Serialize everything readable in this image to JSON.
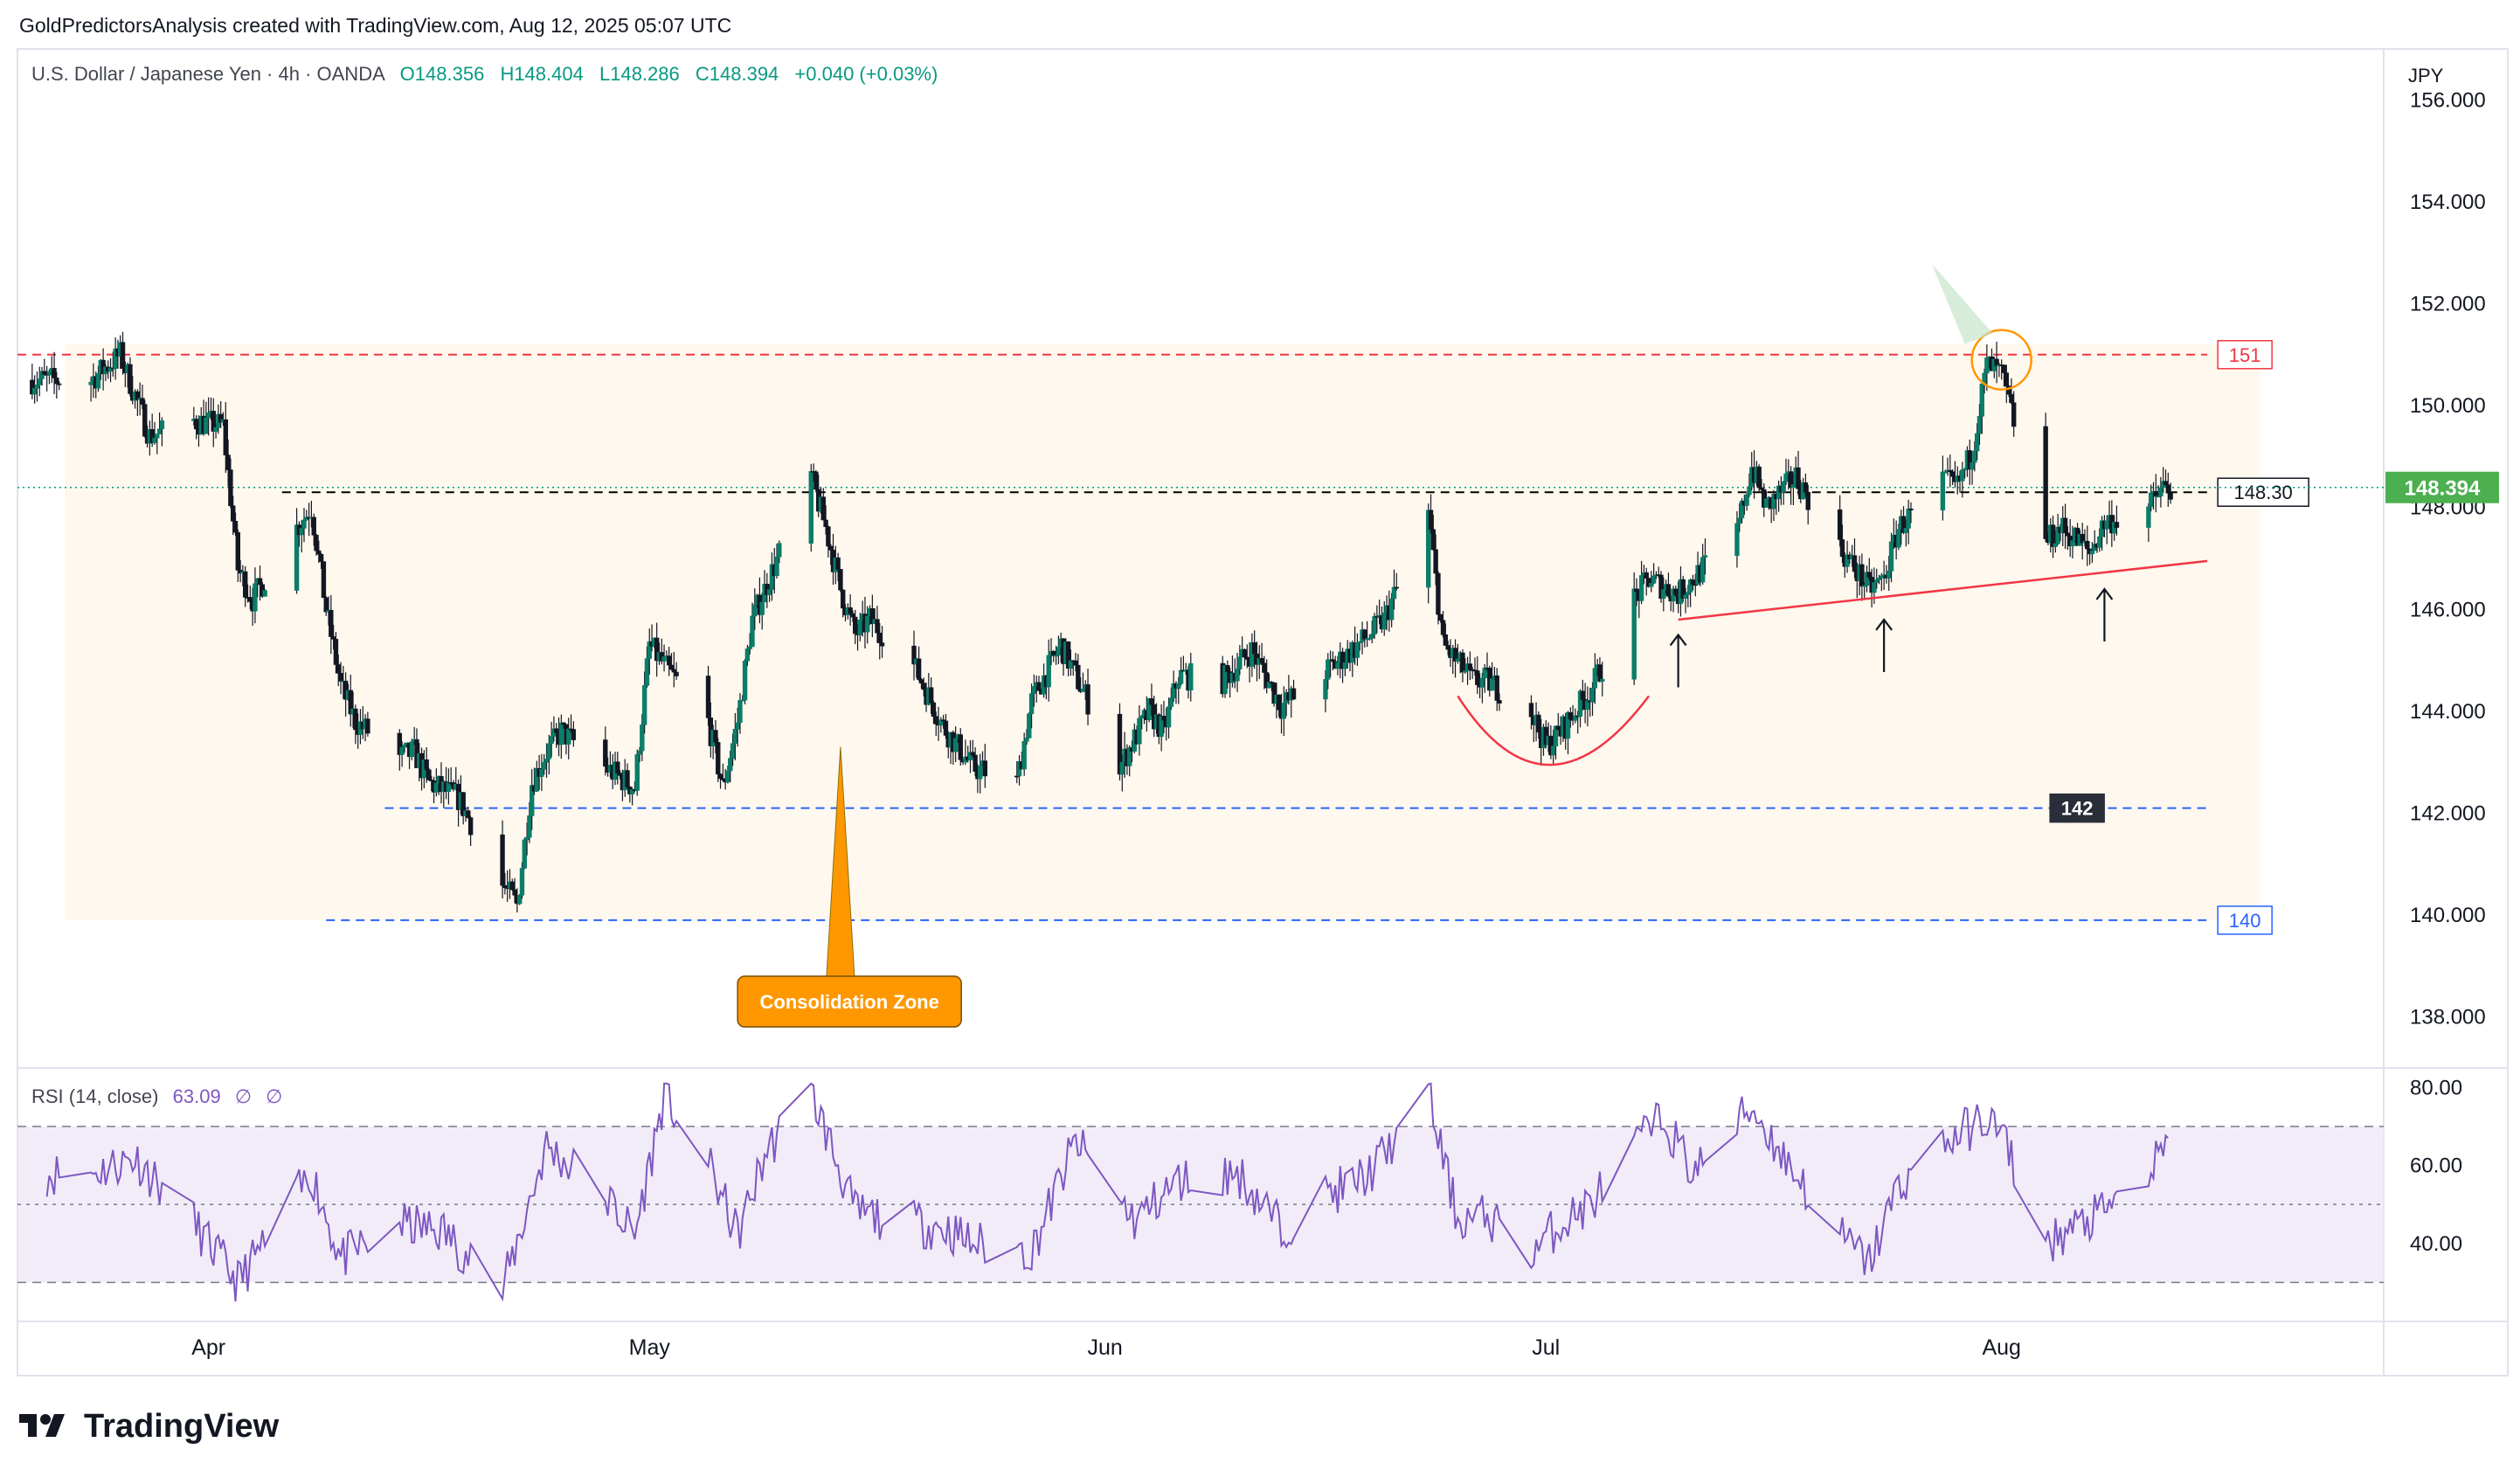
{
  "header": {
    "attribution": "GoldPredictorsAnalysis created with TradingView.com, Aug 12, 2025 05:07 UTC",
    "symbol": "U.S. Dollar / Japanese Yen · 4h · OANDA",
    "open": "O148.356",
    "high": "H148.404",
    "low": "L148.286",
    "close": "C148.394",
    "change": "+0.040 (+0.03%)"
  },
  "price_axis": {
    "currency": "JPY",
    "ticks": [
      "156.000",
      "154.000",
      "152.000",
      "150.000",
      "148.000",
      "146.000",
      "144.000",
      "142.000",
      "140.000",
      "138.000"
    ],
    "last_price": "148.394"
  },
  "rsi_axis": {
    "ticks": [
      "80.00",
      "60.00",
      "40.00"
    ]
  },
  "indicator": {
    "label": "RSI (14, close)",
    "value": "63.09",
    "extra1": "∅",
    "extra2": "∅"
  },
  "time_axis": {
    "labels": [
      "Apr",
      "May",
      "Jun",
      "Jul",
      "Aug"
    ]
  },
  "annotations": {
    "level_151": "151",
    "level_148_30": "148.30",
    "level_142": "142",
    "level_140": "140",
    "consolidation": "Consolidation Zone"
  },
  "footer": {
    "logo": "TradingView"
  },
  "colors": {
    "up": "#089981",
    "down": "#f23645",
    "candle_fill_up": "#ffffff",
    "candle_fill_down": "#000000",
    "resistance": "#f23645",
    "support": "#2962ff",
    "rsi_line": "#7e57c2",
    "rsi_band": "#ede7f6",
    "zone_fill": "#fff8ee",
    "callout": "#ff9800",
    "last_price_tag": "#4caf50"
  },
  "chart_data": {
    "type": "candlestick",
    "symbol": "USD/JPY",
    "interval": "4h",
    "y_range": [
      137,
      157
    ],
    "rsi_range": [
      20,
      85
    ],
    "price_path": [
      [
        "2025-03-24",
        150.5
      ],
      [
        "2025-03-26",
        151.0
      ],
      [
        "2025-03-28",
        149.4
      ],
      [
        "2025-03-31",
        149.7
      ],
      [
        "2025-04-02",
        149.6
      ],
      [
        "2025-04-03",
        146.8
      ],
      [
        "2025-04-04",
        146.2
      ],
      [
        "2025-04-07",
        147.6
      ],
      [
        "2025-04-08",
        148.0
      ],
      [
        "2025-04-09",
        146.0
      ],
      [
        "2025-04-10",
        144.5
      ],
      [
        "2025-04-11",
        143.8
      ],
      [
        "2025-04-14",
        143.1
      ],
      [
        "2025-04-15",
        143.2
      ],
      [
        "2025-04-16",
        142.6
      ],
      [
        "2025-04-18",
        142.3
      ],
      [
        "2025-04-21",
        140.6
      ],
      [
        "2025-04-22",
        140.2
      ],
      [
        "2025-04-23",
        142.6
      ],
      [
        "2025-04-24",
        143.2
      ],
      [
        "2025-04-25",
        143.6
      ],
      [
        "2025-04-28",
        142.9
      ],
      [
        "2025-04-30",
        142.5
      ],
      [
        "2025-05-01",
        145.3
      ],
      [
        "2025-05-02",
        144.9
      ],
      [
        "2025-05-05",
        143.8
      ],
      [
        "2025-05-06",
        142.5
      ],
      [
        "2025-05-07",
        143.8
      ],
      [
        "2025-05-08",
        145.8
      ],
      [
        "2025-05-12",
        148.6
      ],
      [
        "2025-05-13",
        147.6
      ],
      [
        "2025-05-14",
        146.4
      ],
      [
        "2025-05-15",
        145.5
      ],
      [
        "2025-05-16",
        145.8
      ],
      [
        "2025-05-19",
        144.9
      ],
      [
        "2025-05-21",
        143.7
      ],
      [
        "2025-05-23",
        142.9
      ],
      [
        "2025-05-26",
        142.6
      ],
      [
        "2025-05-27",
        144.2
      ],
      [
        "2025-05-29",
        145.3
      ],
      [
        "2025-06-02",
        142.9
      ],
      [
        "2025-06-04",
        144.0
      ],
      [
        "2025-06-05",
        143.6
      ],
      [
        "2025-06-06",
        144.7
      ],
      [
        "2025-06-09",
        144.6
      ],
      [
        "2025-06-11",
        145.2
      ],
      [
        "2025-06-13",
        144.1
      ],
      [
        "2025-06-17",
        145.0
      ],
      [
        "2025-06-19",
        145.5
      ],
      [
        "2025-06-20",
        145.8
      ],
      [
        "2025-06-23",
        147.9
      ],
      [
        "2025-06-24",
        145.3
      ],
      [
        "2025-06-26",
        144.6
      ],
      [
        "2025-06-27",
        144.6
      ],
      [
        "2025-06-30",
        144.0
      ],
      [
        "2025-07-01",
        143.3
      ],
      [
        "2025-07-02",
        143.6
      ],
      [
        "2025-07-03",
        144.0
      ],
      [
        "2025-07-04",
        144.4
      ],
      [
        "2025-07-07",
        146.2
      ],
      [
        "2025-07-08",
        146.6
      ],
      [
        "2025-07-10",
        146.3
      ],
      [
        "2025-07-14",
        147.5
      ],
      [
        "2025-07-15",
        148.8
      ],
      [
        "2025-07-16",
        148.0
      ],
      [
        "2025-07-18",
        148.6
      ],
      [
        "2025-07-21",
        147.2
      ],
      [
        "2025-07-23",
        146.4
      ],
      [
        "2025-07-24",
        146.6
      ],
      [
        "2025-07-25",
        147.6
      ],
      [
        "2025-07-28",
        148.5
      ],
      [
        "2025-07-29",
        148.4
      ],
      [
        "2025-07-30",
        149.1
      ],
      [
        "2025-07-31",
        150.8
      ],
      [
        "2025-08-01",
        150.6
      ],
      [
        "2025-08-04",
        147.3
      ],
      [
        "2025-08-05",
        147.6
      ],
      [
        "2025-08-06",
        147.4
      ],
      [
        "2025-08-07",
        147.1
      ],
      [
        "2025-08-08",
        147.7
      ],
      [
        "2025-08-11",
        148.0
      ],
      [
        "2025-08-12",
        148.39
      ]
    ],
    "rsi_path": [
      [
        "2025-03-24",
        58
      ],
      [
        "2025-03-27",
        62
      ],
      [
        "2025-03-31",
        45
      ],
      [
        "2025-04-03",
        30
      ],
      [
        "2025-04-07",
        52
      ],
      [
        "2025-04-08",
        58
      ],
      [
        "2025-04-10",
        36
      ],
      [
        "2025-04-14",
        45
      ],
      [
        "2025-04-17",
        43
      ],
      [
        "2025-04-21",
        28
      ],
      [
        "2025-04-24",
        65
      ],
      [
        "2025-04-28",
        52
      ],
      [
        "2025-04-30",
        42
      ],
      [
        "2025-05-02",
        78
      ],
      [
        "2025-05-05",
        60
      ],
      [
        "2025-05-07",
        42
      ],
      [
        "2025-05-09",
        64
      ],
      [
        "2025-05-12",
        79
      ],
      [
        "2025-05-15",
        48
      ],
      [
        "2025-05-19",
        45
      ],
      [
        "2025-05-21",
        44
      ],
      [
        "2025-05-23",
        40
      ],
      [
        "2025-05-27",
        38
      ],
      [
        "2025-05-30",
        66
      ],
      [
        "2025-06-03",
        46
      ],
      [
        "2025-06-06",
        56
      ],
      [
        "2025-06-10",
        58
      ],
      [
        "2025-06-13",
        44
      ],
      [
        "2025-06-16",
        52
      ],
      [
        "2025-06-19",
        58
      ],
      [
        "2025-06-23",
        78
      ],
      [
        "2025-06-25",
        46
      ],
      [
        "2025-06-27",
        47
      ],
      [
        "2025-06-30",
        38
      ],
      [
        "2025-07-02",
        45
      ],
      [
        "2025-07-04",
        50
      ],
      [
        "2025-07-07",
        65
      ],
      [
        "2025-07-09",
        72
      ],
      [
        "2025-07-11",
        58
      ],
      [
        "2025-07-15",
        75
      ],
      [
        "2025-07-17",
        63
      ],
      [
        "2025-07-21",
        42
      ],
      [
        "2025-07-23",
        35
      ],
      [
        "2025-07-25",
        55
      ],
      [
        "2025-07-29",
        68
      ],
      [
        "2025-07-31",
        72
      ],
      [
        "2025-08-01",
        68
      ],
      [
        "2025-08-04",
        40
      ],
      [
        "2025-08-06",
        44
      ],
      [
        "2025-08-08",
        48
      ],
      [
        "2025-08-11",
        58
      ],
      [
        "2025-08-12",
        63.09
      ]
    ],
    "levels": [
      {
        "label": "151",
        "value": 151.0,
        "style": "dashed",
        "color": "#f23645"
      },
      {
        "label": "148.30",
        "value": 148.3,
        "style": "dashed",
        "color": "#000000"
      },
      {
        "label": "142",
        "value": 142.1,
        "style": "dashed",
        "color": "#2962ff"
      },
      {
        "label": "140",
        "value": 139.9,
        "style": "dashed",
        "color": "#2962ff"
      }
    ],
    "trendline": {
      "from": [
        "2025-07-10",
        145.8
      ],
      "to": [
        "2025-08-15",
        146.95
      ]
    },
    "consolidation_zone": {
      "from": "2025-03-24",
      "to": "2025-08-18",
      "low": 139.9,
      "high": 151.2
    },
    "last_price": 148.394,
    "rsi_last": 63.09
  }
}
